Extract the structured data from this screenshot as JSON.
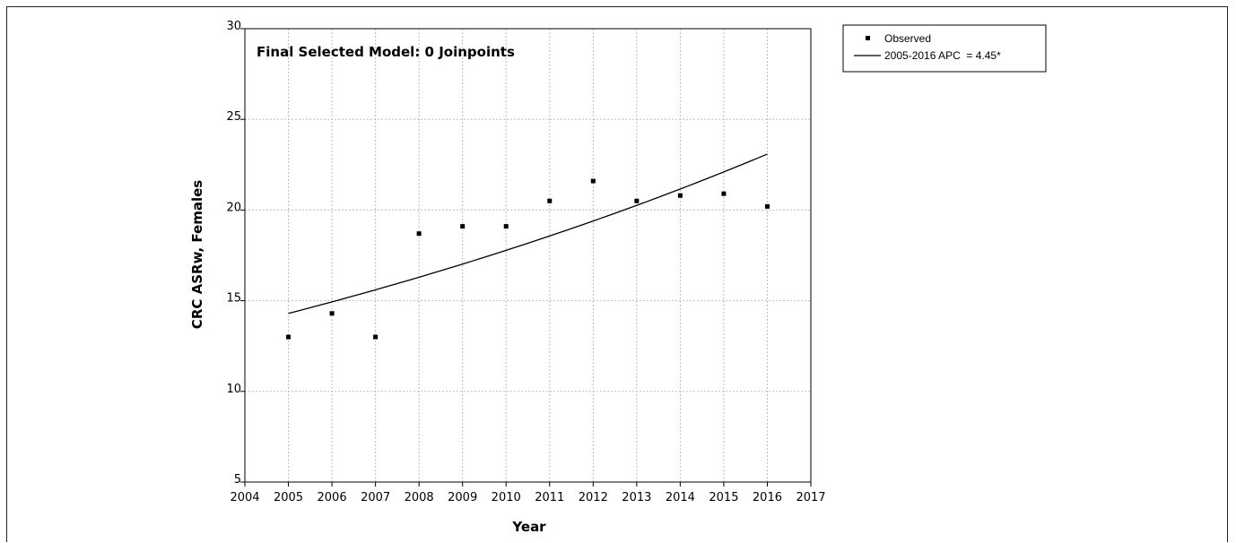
{
  "chart_data": {
    "type": "scatter",
    "title": "Final Selected Model: 0 Joinpoints",
    "xlabel": "Year",
    "ylabel": "CRC ASRw, Females",
    "xlim": [
      2004,
      2017
    ],
    "ylim": [
      5,
      30
    ],
    "xticks": [
      "2004",
      "2005",
      "2006",
      "2007",
      "2008",
      "2009",
      "2010",
      "2011",
      "2012",
      "2013",
      "2014",
      "2015",
      "2016",
      "2017"
    ],
    "yticks": [
      "5",
      "10",
      "15",
      "20",
      "25",
      "30"
    ],
    "grid": true,
    "legend_position": "right",
    "series": [
      {
        "name": "Observed",
        "kind": "points",
        "x": [
          2005,
          2006,
          2007,
          2008,
          2009,
          2010,
          2011,
          2012,
          2013,
          2014,
          2015,
          2016
        ],
        "y": [
          13.0,
          14.3,
          13.0,
          18.7,
          19.1,
          19.1,
          20.5,
          21.6,
          20.5,
          20.8,
          20.9,
          20.2
        ]
      },
      {
        "name": "2005-2016 APC  = 4.45*",
        "kind": "fit",
        "x_start": 2005,
        "x_end": 2016,
        "y_start": 14.3,
        "apc": 4.45
      }
    ],
    "colors": {
      "marker": "#000000",
      "line": "#000000",
      "grid": "#bdbdbd"
    }
  }
}
